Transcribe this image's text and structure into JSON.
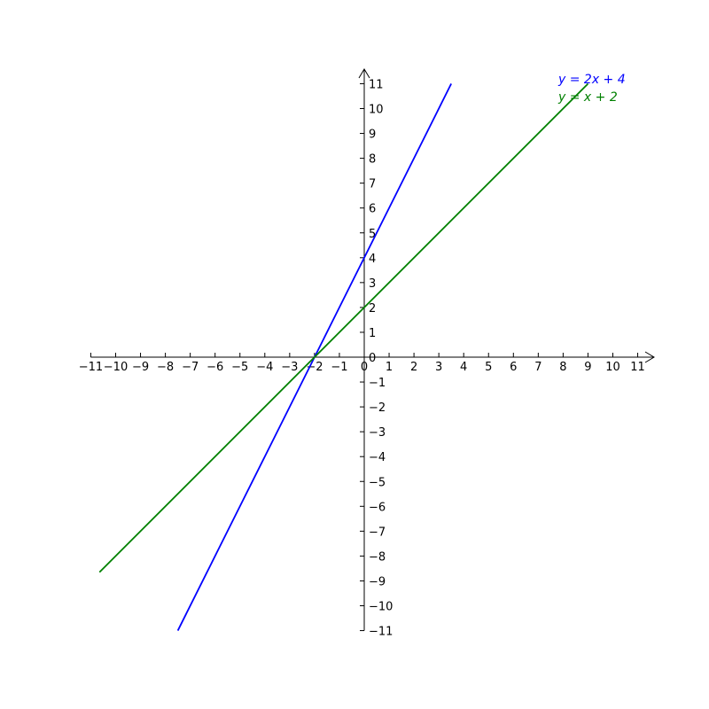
{
  "chart_data": {
    "type": "line",
    "title": "",
    "xlabel": "",
    "ylabel": "",
    "xlim": [
      -11,
      11
    ],
    "ylim": [
      -11,
      11
    ],
    "xticks": [
      -11,
      -10,
      -9,
      -8,
      -7,
      -6,
      -5,
      -4,
      -3,
      -2,
      -1,
      0,
      1,
      2,
      3,
      4,
      5,
      6,
      7,
      8,
      9,
      10,
      11
    ],
    "yticks": [
      -11,
      -10,
      -9,
      -8,
      -7,
      -6,
      -5,
      -4,
      -3,
      -2,
      -1,
      0,
      1,
      2,
      3,
      4,
      5,
      6,
      7,
      8,
      9,
      10,
      11
    ],
    "grid": false,
    "axes_style": "centered at origin with arrows",
    "legend_placement": "top-right",
    "series": [
      {
        "name": "y = 2x + 4",
        "slope": 2,
        "intercept": 4,
        "x": [
          -7.5,
          3.5
        ],
        "y": [
          -11,
          11
        ],
        "color": "#0000ff"
      },
      {
        "name": "y = x + 2",
        "slope": 1,
        "intercept": 2,
        "x": [
          -10.65,
          9
        ],
        "y": [
          -8.65,
          11
        ],
        "color": "#008000"
      }
    ]
  }
}
